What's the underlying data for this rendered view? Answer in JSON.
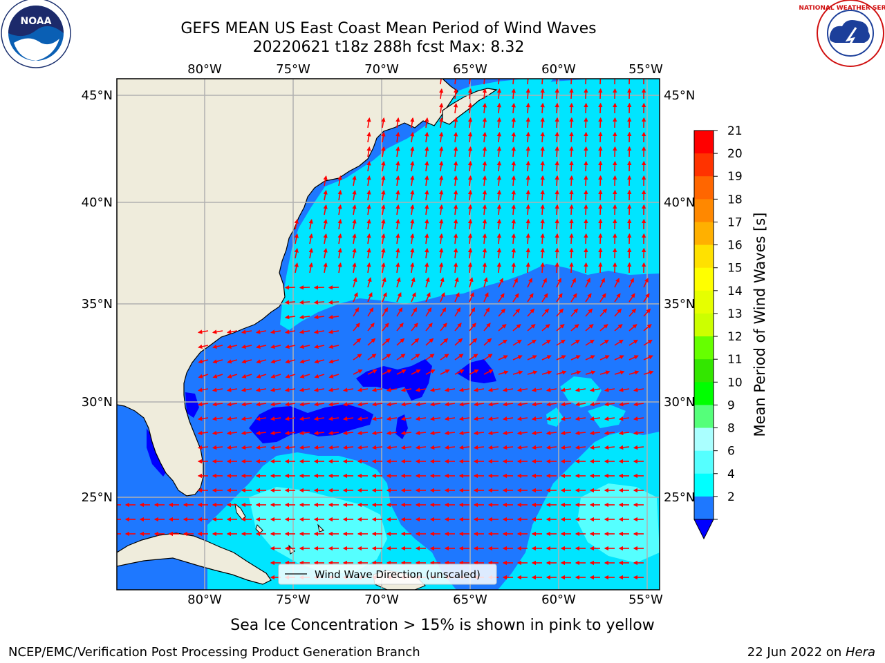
{
  "header": {
    "title_line1": "GEFS MEAN US East Coast Mean Period of Wind Waves",
    "title_line2": "20220621 t18z 288h fcst   Max: 8.32"
  },
  "logos": {
    "left": "NOAA",
    "left_ring": "NATIONAL OCEANIC AND ATMOSPHERIC ADMINISTRATION · U.S. DEPARTMENT OF COMMERCE",
    "right_ring": "NATIONAL WEATHER SERVICE"
  },
  "map": {
    "lon_labels_top": [
      "80°W",
      "75°W",
      "70°W",
      "65°W",
      "60°W",
      "55°W"
    ],
    "lon_labels_bottom": [
      "80°W",
      "75°W",
      "70°W",
      "65°W",
      "60°W",
      "55°W"
    ],
    "lat_labels_left": [
      "45°N",
      "40°N",
      "35°N",
      "30°N",
      "25°N"
    ],
    "lat_labels_right": [
      "45°N",
      "40°N",
      "35°N",
      "30°N",
      "25°N"
    ],
    "legend_label": "Wind Wave Direction (unscaled)",
    "colors": {
      "land": "#efecdc",
      "band_2_4": "#1e78ff",
      "band_4_6": "#00e5ff",
      "band_6_8": "#55ffff",
      "band_lt2": "#0000ff",
      "arrow": "#ff0000",
      "grid": "#b0b0b0"
    }
  },
  "colorbar": {
    "label": "Mean Period of Wind Waves [s]",
    "ticks": [
      "21",
      "20",
      "19",
      "18",
      "17",
      "16",
      "15",
      "14",
      "13",
      "12",
      "11",
      "10",
      "9",
      "8",
      "6",
      "4",
      "2"
    ],
    "colors": [
      "#ff0000",
      "#ff3300",
      "#ff6600",
      "#ff8800",
      "#ffb000",
      "#ffe100",
      "#ffff00",
      "#e6ff00",
      "#ccff00",
      "#66ff00",
      "#33e600",
      "#00ff00",
      "#55ff7a",
      "#aaffff",
      "#55ffff",
      "#00ffff",
      "#1e78ff"
    ],
    "under_color": "#0000ff"
  },
  "notes": {
    "sea_ice": "Sea Ice Concentration > 15% is shown in pink to yellow"
  },
  "footer": {
    "left": "NCEP/EMC/Verification Post Processing Product Generation Branch",
    "right_date": "22 Jun 2022 on ",
    "right_machine": "Hera"
  }
}
